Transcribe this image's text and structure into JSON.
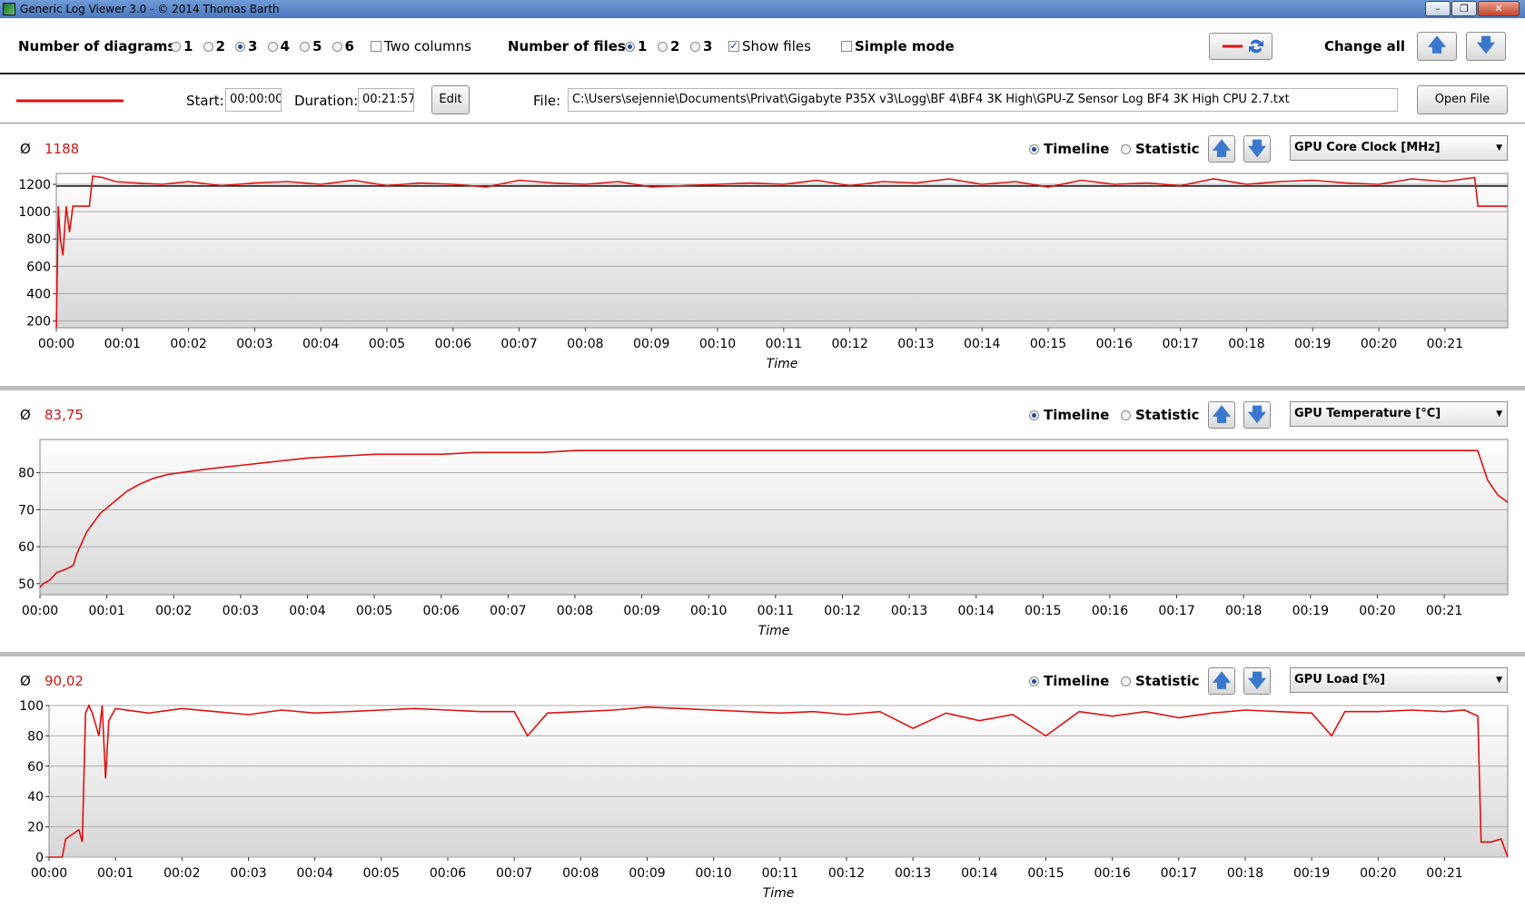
{
  "window": {
    "title": "Generic Log Viewer 3.0 - © 2014 Thomas Barth",
    "buttons": [
      "–",
      "❐",
      "✕"
    ]
  },
  "toolbar": {
    "num_diagrams_label": "Number of diagrams",
    "diagram_options": [
      "1",
      "2",
      "3",
      "4",
      "5",
      "6"
    ],
    "diagram_selected": "3",
    "two_columns_label": "Two columns",
    "two_columns_checked": false,
    "num_files_label": "Number of files",
    "file_options": [
      "1",
      "2",
      "3"
    ],
    "file_selected": "1",
    "show_files_label": "Show files",
    "show_files_checked": true,
    "simple_mode_label": "Simple mode",
    "simple_mode_checked": false,
    "change_all_label": "Change all",
    "up_glyph": "🡅",
    "down_glyph": "🡇"
  },
  "file_row": {
    "line_color": "#e01010",
    "start_label": "Start:",
    "start_value": "00:00:00",
    "duration_label": "Duration:",
    "duration_value": "00:21:57",
    "edit_label": "Edit",
    "file_label": "File:",
    "file_path": "C:\\Users\\sejennie\\Documents\\Privat\\Gigabyte P35X v3\\Logg\\BF 4\\BF4 3K High\\GPU-Z Sensor Log BF4 3K High CPU 2.7.txt",
    "open_label": "Open File"
  },
  "diagrams": [
    {
      "avg_symbol": "Ø",
      "average": "1188",
      "timeline_label": "Timeline",
      "statistic_label": "Statistic",
      "mode": "Timeline",
      "sensor": "GPU Core Clock [MHz]"
    },
    {
      "avg_symbol": "Ø",
      "average": "83,75",
      "timeline_label": "Timeline",
      "statistic_label": "Statistic",
      "mode": "Timeline",
      "sensor": "GPU Temperature [°C]"
    },
    {
      "avg_symbol": "Ø",
      "average": "90,02",
      "timeline_label": "Timeline",
      "statistic_label": "Statistic",
      "mode": "Timeline",
      "sensor": "GPU Load [%]"
    }
  ],
  "chart_data": [
    {
      "type": "line",
      "xlabel": "Time",
      "x_ticks": [
        "00:00",
        "00:01",
        "00:02",
        "00:03",
        "00:04",
        "00:05",
        "00:06",
        "00:07",
        "00:08",
        "00:09",
        "00:10",
        "00:11",
        "00:12",
        "00:13",
        "00:14",
        "00:15",
        "00:16",
        "00:17",
        "00:18",
        "00:19",
        "00:20",
        "00:21"
      ],
      "y_ticks": [
        200,
        400,
        600,
        800,
        1000,
        1200
      ],
      "ylim": [
        150,
        1280
      ],
      "xlim": [
        0,
        21.95
      ],
      "average_line": 1188,
      "line_color": "#e01010",
      "series": [
        {
          "x": [
            0,
            0.03,
            0.06,
            0.1,
            0.15,
            0.2,
            0.25,
            0.3,
            0.5,
            0.55,
            0.7,
            0.9,
            1.2,
            1.6,
            2.0,
            2.5,
            3.0,
            3.5,
            4.0,
            4.5,
            5.0,
            5.5,
            6.0,
            6.5,
            7.0,
            7.5,
            8.0,
            8.5,
            9.0,
            9.5,
            10.0,
            10.5,
            11.0,
            11.5,
            12.0,
            12.5,
            13.0,
            13.5,
            14.0,
            14.5,
            15.0,
            15.5,
            16.0,
            16.5,
            17.0,
            17.5,
            18.0,
            18.5,
            19.0,
            19.5,
            20.0,
            20.5,
            21.0,
            21.3,
            21.45,
            21.5,
            21.95
          ],
          "y": [
            150,
            1040,
            800,
            680,
            1040,
            850,
            1040,
            1040,
            1040,
            1260,
            1250,
            1220,
            1210,
            1200,
            1220,
            1190,
            1210,
            1220,
            1200,
            1230,
            1190,
            1210,
            1200,
            1180,
            1230,
            1210,
            1200,
            1220,
            1180,
            1190,
            1200,
            1210,
            1200,
            1230,
            1190,
            1220,
            1210,
            1240,
            1200,
            1220,
            1180,
            1230,
            1200,
            1210,
            1190,
            1240,
            1200,
            1220,
            1230,
            1210,
            1200,
            1240,
            1220,
            1240,
            1250,
            1040,
            1040
          ]
        }
      ]
    },
    {
      "type": "line",
      "xlabel": "Time",
      "x_ticks": [
        "00:00",
        "00:01",
        "00:02",
        "00:03",
        "00:04",
        "00:05",
        "00:06",
        "00:07",
        "00:08",
        "00:09",
        "00:10",
        "00:11",
        "00:12",
        "00:13",
        "00:14",
        "00:15",
        "00:16",
        "00:17",
        "00:18",
        "00:19",
        "00:20",
        "00:21"
      ],
      "y_ticks": [
        50,
        60,
        70,
        80
      ],
      "ylim": [
        47,
        89
      ],
      "xlim": [
        0,
        21.95
      ],
      "line_color": "#e01010",
      "series": [
        {
          "x": [
            0,
            0.05,
            0.15,
            0.25,
            0.4,
            0.5,
            0.55,
            0.7,
            0.9,
            1.1,
            1.3,
            1.5,
            1.7,
            1.9,
            2.1,
            2.5,
            3.0,
            3.5,
            4.0,
            4.5,
            5.0,
            5.5,
            6.0,
            6.5,
            7.0,
            7.5,
            8.0,
            9.0,
            10.0,
            11.0,
            12.0,
            13.0,
            14.0,
            15.0,
            16.0,
            17.0,
            18.0,
            19.0,
            20.0,
            21.0,
            21.5,
            21.65,
            21.8,
            21.95
          ],
          "y": [
            49,
            50,
            51,
            53,
            54,
            55,
            58,
            64,
            69,
            72,
            75,
            77,
            78.5,
            79.5,
            80,
            81,
            82,
            83,
            84,
            84.5,
            85,
            85,
            85,
            85.5,
            85.5,
            85.5,
            86,
            86,
            86,
            86,
            86,
            86,
            86,
            86,
            86,
            86,
            86,
            86,
            86,
            86,
            86,
            78,
            74,
            72
          ]
        }
      ]
    },
    {
      "type": "line",
      "xlabel": "Time",
      "x_ticks": [
        "00:00",
        "00:01",
        "00:02",
        "00:03",
        "00:04",
        "00:05",
        "00:06",
        "00:07",
        "00:08",
        "00:09",
        "00:10",
        "00:11",
        "00:12",
        "00:13",
        "00:14",
        "00:15",
        "00:16",
        "00:17",
        "00:18",
        "00:19",
        "00:20",
        "00:21"
      ],
      "y_ticks": [
        0,
        20,
        40,
        60,
        80,
        100
      ],
      "ylim": [
        0,
        100
      ],
      "xlim": [
        0,
        21.95
      ],
      "line_color": "#e01010",
      "series": [
        {
          "x": [
            0,
            0.2,
            0.25,
            0.35,
            0.45,
            0.5,
            0.55,
            0.6,
            0.65,
            0.75,
            0.8,
            0.85,
            0.9,
            1.0,
            1.5,
            2.0,
            2.5,
            3.0,
            3.5,
            4.0,
            4.5,
            5.0,
            5.5,
            6.0,
            6.5,
            7.0,
            7.2,
            7.5,
            8.0,
            8.5,
            9.0,
            9.5,
            10.0,
            10.5,
            11.0,
            11.5,
            12.0,
            12.5,
            13.0,
            13.5,
            14.0,
            14.5,
            15.0,
            15.5,
            16.0,
            16.5,
            17.0,
            17.5,
            18.0,
            18.5,
            19.0,
            19.3,
            19.5,
            20.0,
            20.5,
            21.0,
            21.3,
            21.5,
            21.55,
            21.7,
            21.85,
            21.95
          ],
          "y": [
            0,
            0,
            12,
            15,
            18,
            10,
            95,
            100,
            95,
            80,
            100,
            52,
            90,
            98,
            95,
            98,
            96,
            94,
            97,
            95,
            96,
            97,
            98,
            97,
            96,
            96,
            80,
            95,
            96,
            97,
            99,
            98,
            97,
            96,
            95,
            96,
            94,
            96,
            85,
            95,
            90,
            94,
            80,
            96,
            93,
            96,
            92,
            95,
            97,
            96,
            95,
            80,
            96,
            96,
            97,
            96,
            97,
            93,
            10,
            10,
            12,
            0
          ]
        }
      ]
    }
  ]
}
